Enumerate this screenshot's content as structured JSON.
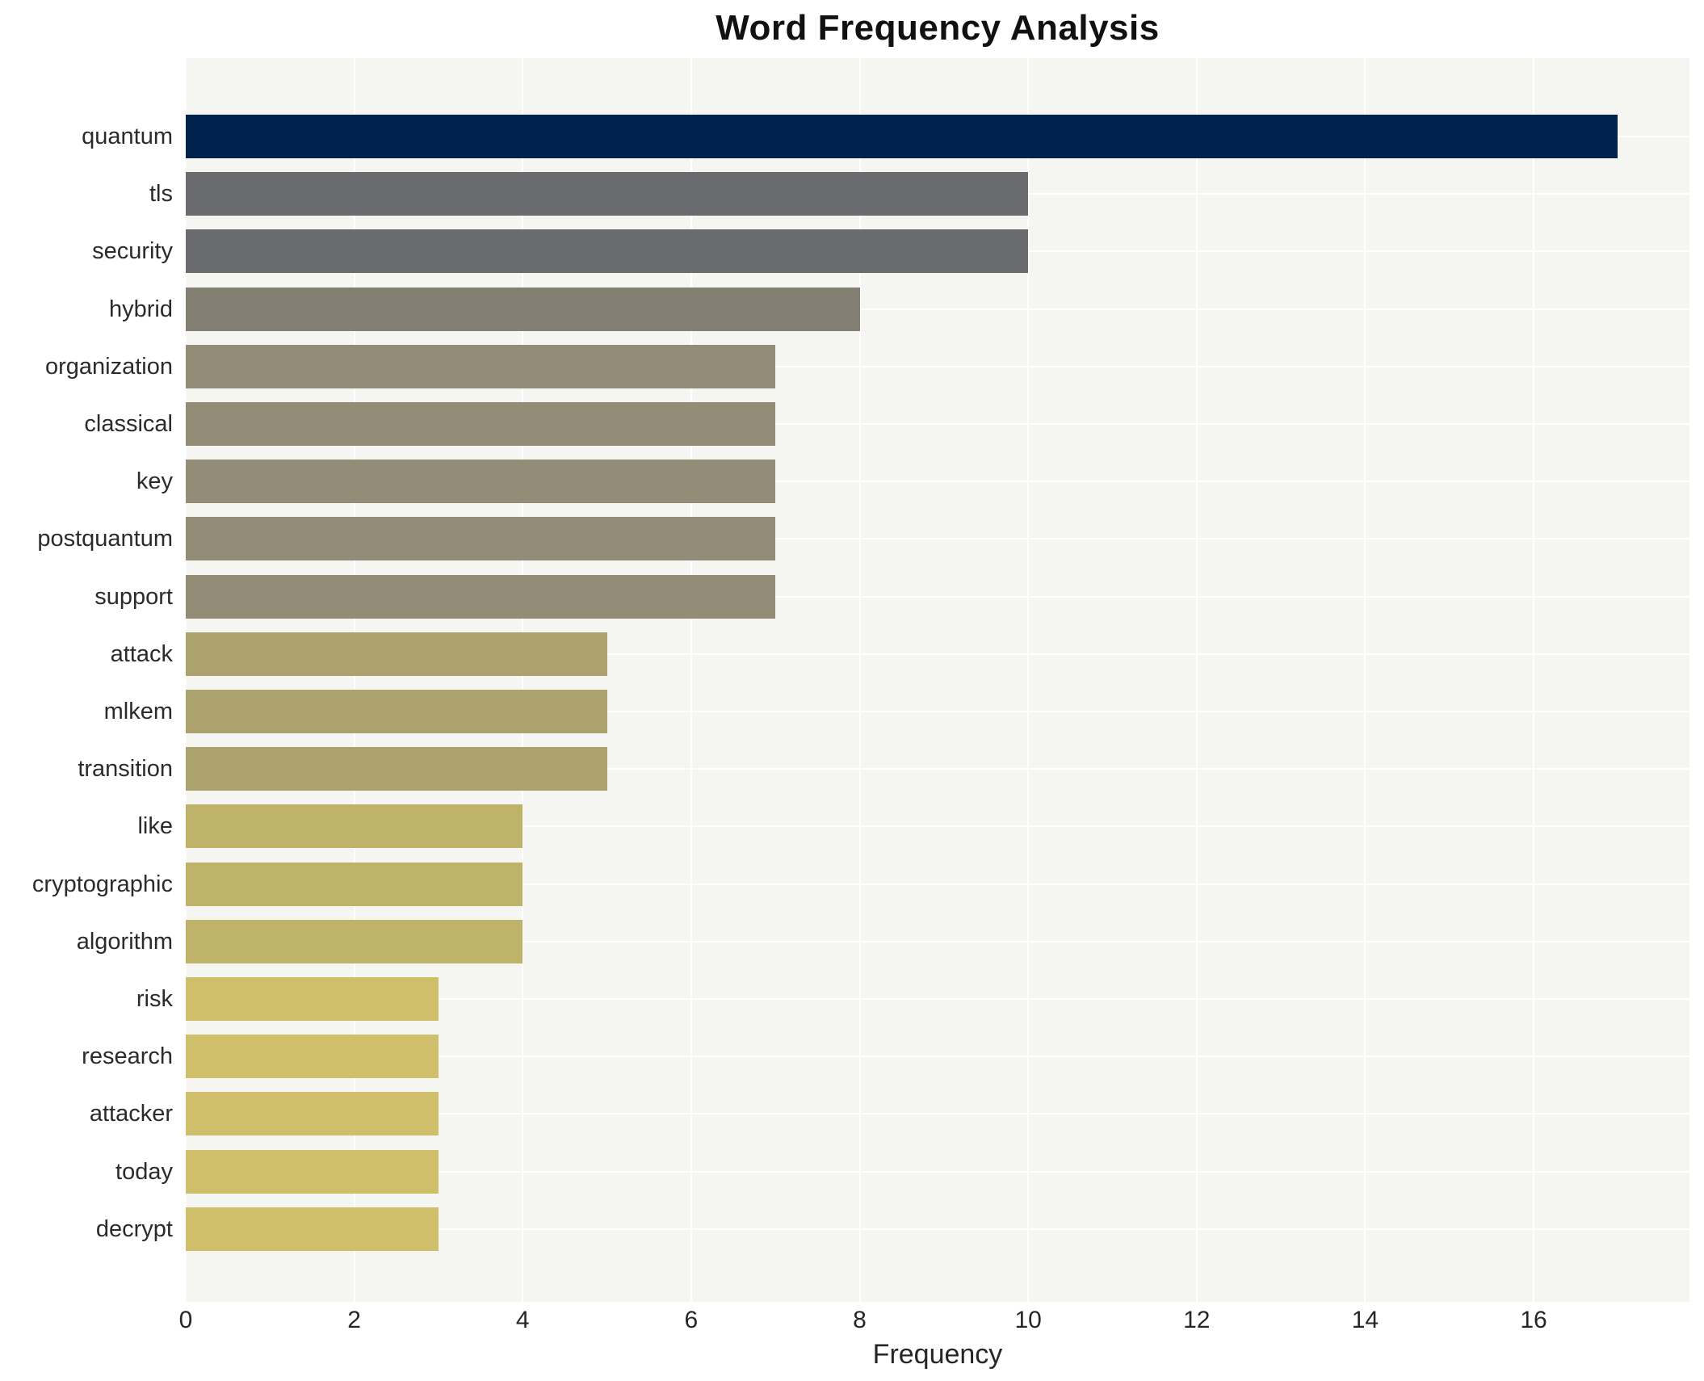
{
  "title": "Word Frequency Analysis",
  "chart_data": {
    "type": "bar",
    "orientation": "horizontal",
    "title": "Word Frequency Analysis",
    "xlabel": "Frequency",
    "ylabel": "",
    "categories": [
      "quantum",
      "tls",
      "security",
      "hybrid",
      "organization",
      "classical",
      "key",
      "postquantum",
      "support",
      "attack",
      "mlkem",
      "transition",
      "like",
      "cryptographic",
      "algorithm",
      "risk",
      "research",
      "attacker",
      "today",
      "decrypt"
    ],
    "values": [
      17,
      10,
      10,
      8,
      7,
      7,
      7,
      7,
      7,
      5,
      5,
      5,
      4,
      4,
      4,
      3,
      3,
      3,
      3,
      3
    ],
    "bar_colors": [
      "#00234e",
      "#6a6b6f",
      "#6a6b6f",
      "#847f73",
      "#938c77",
      "#938c77",
      "#938c77",
      "#938c77",
      "#938c77",
      "#aca26e",
      "#aca26e",
      "#aca26e",
      "#bfb269",
      "#bfb269",
      "#bfb269",
      "#cfbf6a",
      "#cfbf6a",
      "#cfbf6a",
      "#cfbf6a",
      "#cfbf6a"
    ],
    "xticks": [
      0,
      2,
      4,
      6,
      8,
      10,
      12,
      14,
      16
    ],
    "xlim": [
      0,
      17.85
    ],
    "grid": true,
    "legend": "none",
    "plot_background": "#f5f5f2",
    "grid_color": "#ffffff",
    "text_color": "#262626"
  }
}
